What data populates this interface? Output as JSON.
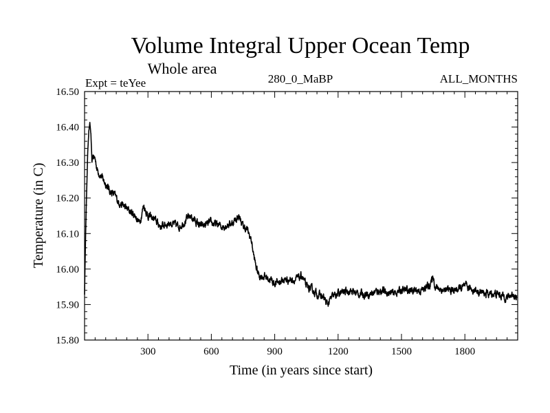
{
  "chart_data": {
    "type": "line",
    "title": "Volume Integral Upper Ocean Temp",
    "subtitle": "Whole area",
    "expt_label": "Expt = teYee",
    "run_label": "280_0_MaBP",
    "months_label": "ALL_MONTHS",
    "xlabel": "Time (in years since start)",
    "ylabel": "Temperature (in C)",
    "xlim": [
      0,
      2050
    ],
    "ylim": [
      15.8,
      16.5
    ],
    "x_ticks": [
      300,
      600,
      900,
      1200,
      1500,
      1800
    ],
    "x_tick_labels": [
      "300",
      "600",
      "900",
      "1200",
      "1500",
      "1800"
    ],
    "y_ticks": [
      15.8,
      15.9,
      16.0,
      16.1,
      16.2,
      16.3,
      16.4,
      16.5
    ],
    "y_tick_labels": [
      "15.80",
      "15.90",
      "16.00",
      "16.10",
      "16.20",
      "16.30",
      "16.40",
      "16.50"
    ],
    "grid": false,
    "series": [
      {
        "name": "Volume Integral Upper Ocean Temp",
        "color": "#000000",
        "x": [
          0,
          5,
          10,
          15,
          20,
          25,
          30,
          35,
          40,
          50,
          60,
          70,
          80,
          90,
          100,
          120,
          140,
          160,
          180,
          200,
          220,
          240,
          260,
          280,
          300,
          330,
          360,
          400,
          450,
          500,
          550,
          600,
          650,
          700,
          730,
          750,
          770,
          790,
          800,
          810,
          820,
          830,
          850,
          880,
          900,
          950,
          1000,
          1030,
          1050,
          1080,
          1100,
          1130,
          1150,
          1170,
          1200,
          1250,
          1300,
          1350,
          1400,
          1450,
          1500,
          1550,
          1600,
          1640,
          1650,
          1660,
          1700,
          1750,
          1800,
          1850,
          1900,
          1950,
          2000,
          2030,
          2045
        ],
        "y": [
          15.93,
          16.1,
          16.22,
          16.33,
          16.39,
          16.41,
          16.38,
          16.3,
          16.32,
          16.31,
          16.28,
          16.27,
          16.26,
          16.25,
          16.24,
          16.22,
          16.21,
          16.19,
          16.18,
          16.17,
          16.16,
          16.15,
          16.13,
          16.18,
          16.15,
          16.14,
          16.12,
          16.13,
          16.12,
          16.15,
          16.12,
          16.13,
          16.12,
          16.13,
          16.15,
          16.12,
          16.11,
          16.08,
          16.04,
          16.01,
          15.99,
          15.98,
          15.98,
          15.97,
          15.96,
          15.97,
          15.97,
          15.98,
          15.95,
          15.94,
          15.93,
          15.92,
          15.9,
          15.92,
          15.93,
          15.94,
          15.93,
          15.93,
          15.94,
          15.93,
          15.94,
          15.94,
          15.94,
          15.96,
          15.98,
          15.95,
          15.94,
          15.94,
          15.95,
          15.94,
          15.93,
          15.93,
          15.92,
          15.93,
          15.92
        ]
      }
    ]
  }
}
